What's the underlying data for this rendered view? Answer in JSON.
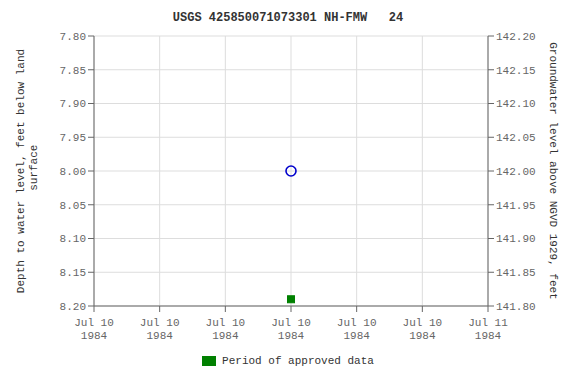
{
  "chart_data": {
    "type": "scatter",
    "title": "USGS 425850071073301 NH-FMW   24",
    "categories": [
      "Jul 10\n1984",
      "Jul 10\n1984",
      "Jul 10\n1984",
      "Jul 10\n1984",
      "Jul 10\n1984",
      "Jul 10\n1984",
      "Jul 11\n1984"
    ],
    "series": [
      {
        "color": "#0000cc",
        "marker": "circle",
        "values": [
          null,
          null,
          null,
          8.0,
          null,
          null,
          null
        ]
      },
      {
        "name": "Period of approved data",
        "color": "#008000",
        "marker": "square",
        "values": [
          null,
          null,
          null,
          8.19,
          null,
          null,
          null
        ]
      }
    ],
    "y_label": "Depth to water level, feet below land\n surface",
    "y2_label": "Groundwater level above NGVD 1929, feet",
    "ylim": [
      8.2,
      7.8
    ],
    "yticks": [
      {
        "value": 7.8,
        "label": "7.80"
      },
      7.85,
      {
        "value": 7.9,
        "label": "7.90"
      },
      7.95,
      {
        "value": 8,
        "label": "8.00"
      },
      8.05,
      {
        "value": 8.1,
        "label": "8.10"
      },
      8.15,
      {
        "value": 8.2,
        "label": "8.20"
      }
    ],
    "y2lim": [
      141.8,
      142.2
    ],
    "y2ticks": [
      {
        "value": 141.8,
        "label": "141.80"
      },
      141.85,
      {
        "value": 141.9,
        "label": "141.90"
      },
      141.95,
      {
        "value": 142,
        "label": "142.00"
      },
      142.05,
      {
        "value": 142.1,
        "label": "142.10"
      },
      142.15,
      {
        "value": 142.2,
        "label": "142.20"
      }
    ],
    "grid": true,
    "legend": "bottom"
  }
}
